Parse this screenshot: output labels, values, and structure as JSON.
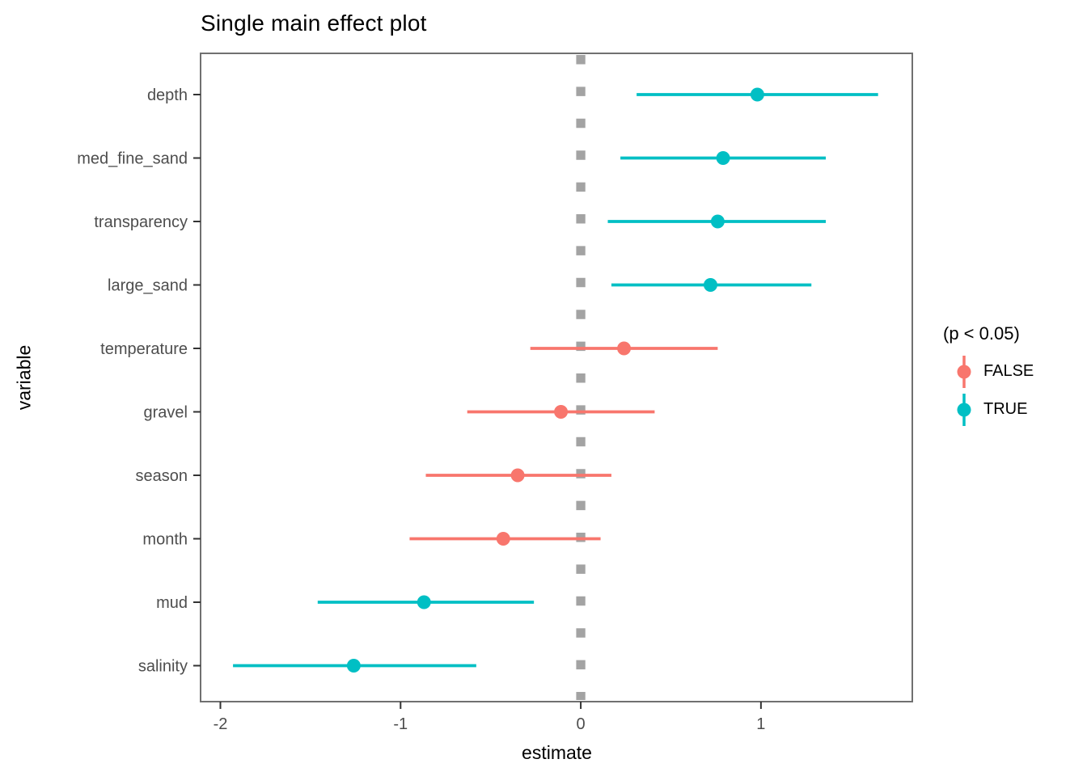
{
  "chart_data": {
    "type": "pointrange",
    "title": "Single main effect plot",
    "xlabel": "estimate",
    "ylabel": "variable",
    "xlim": [
      -2.11,
      1.84
    ],
    "x_ticks": [
      "-2",
      "-1",
      "0",
      "1"
    ],
    "x_tick_values": [
      -2,
      -1,
      0,
      1
    ],
    "grid": false,
    "reference_line": {
      "x": 0,
      "style": "dashed"
    },
    "legend": {
      "title": "(p < 0.05)",
      "position": "right",
      "entries": [
        {
          "label": "FALSE",
          "color": "#F8766D"
        },
        {
          "label": "TRUE",
          "color": "#00BFC4"
        }
      ]
    },
    "rows": [
      {
        "variable": "depth",
        "estimate": 0.98,
        "low": 0.31,
        "high": 1.65,
        "significant": true
      },
      {
        "variable": "med_fine_sand",
        "estimate": 0.79,
        "low": 0.22,
        "high": 1.36,
        "significant": true
      },
      {
        "variable": "transparency",
        "estimate": 0.76,
        "low": 0.15,
        "high": 1.36,
        "significant": true
      },
      {
        "variable": "large_sand",
        "estimate": 0.72,
        "low": 0.17,
        "high": 1.28,
        "significant": true
      },
      {
        "variable": "temperature",
        "estimate": 0.24,
        "low": -0.28,
        "high": 0.76,
        "significant": false
      },
      {
        "variable": "gravel",
        "estimate": -0.11,
        "low": -0.63,
        "high": 0.41,
        "significant": false
      },
      {
        "variable": "season",
        "estimate": -0.35,
        "low": -0.86,
        "high": 0.17,
        "significant": false
      },
      {
        "variable": "month",
        "estimate": -0.43,
        "low": -0.95,
        "high": 0.11,
        "significant": false
      },
      {
        "variable": "mud",
        "estimate": -0.87,
        "low": -1.46,
        "high": -0.26,
        "significant": true
      },
      {
        "variable": "salinity",
        "estimate": -1.26,
        "low": -1.93,
        "high": -0.58,
        "significant": true
      }
    ],
    "colors": {
      "false_color": "#F8766D",
      "true_color": "#00BFC4",
      "axis_text": "#4D4D4D",
      "panel_border": "#707070",
      "tick": "#333333",
      "ref_line": "#A3A3A3",
      "panel_bg": "#FFFFFF"
    }
  }
}
